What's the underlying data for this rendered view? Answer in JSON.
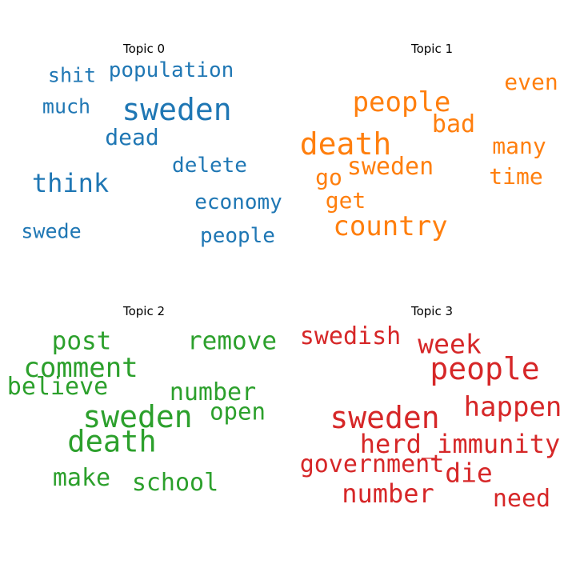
{
  "chart_data": [
    {
      "type": "wordcloud",
      "title": "Topic 0",
      "color": "#1f77b4",
      "words": [
        {
          "text": "sweden",
          "weight": 1.0
        },
        {
          "text": "think",
          "weight": 0.78
        },
        {
          "text": "dead",
          "weight": 0.6
        },
        {
          "text": "population",
          "weight": 0.55
        },
        {
          "text": "delete",
          "weight": 0.52
        },
        {
          "text": "economy",
          "weight": 0.52
        },
        {
          "text": "people",
          "weight": 0.52
        },
        {
          "text": "shit",
          "weight": 0.5
        },
        {
          "text": "much",
          "weight": 0.5
        },
        {
          "text": "swede",
          "weight": 0.5
        }
      ]
    },
    {
      "type": "wordcloud",
      "title": "Topic 1",
      "color": "#ff7f0e",
      "words": [
        {
          "text": "death",
          "weight": 1.0
        },
        {
          "text": "people",
          "weight": 0.85
        },
        {
          "text": "country",
          "weight": 0.85
        },
        {
          "text": "bad",
          "weight": 0.68
        },
        {
          "text": "sweden",
          "weight": 0.68
        },
        {
          "text": "many",
          "weight": 0.6
        },
        {
          "text": "time",
          "weight": 0.6
        },
        {
          "text": "even",
          "weight": 0.6
        },
        {
          "text": "go",
          "weight": 0.6
        },
        {
          "text": "get",
          "weight": 0.6
        }
      ]
    },
    {
      "type": "wordcloud",
      "title": "Topic 2",
      "color": "#2ca02c",
      "words": [
        {
          "text": "sweden",
          "weight": 1.0
        },
        {
          "text": "death",
          "weight": 0.98
        },
        {
          "text": "comment",
          "weight": 0.85
        },
        {
          "text": "remove",
          "weight": 0.74
        },
        {
          "text": "post",
          "weight": 0.72
        },
        {
          "text": "number",
          "weight": 0.7
        },
        {
          "text": "school",
          "weight": 0.7
        },
        {
          "text": "believe",
          "weight": 0.68
        },
        {
          "text": "make",
          "weight": 0.68
        },
        {
          "text": "open",
          "weight": 0.66
        }
      ]
    },
    {
      "type": "wordcloud",
      "title": "Topic 3",
      "color": "#d62728",
      "words": [
        {
          "text": "sweden",
          "weight": 1.0
        },
        {
          "text": "people",
          "weight": 1.0
        },
        {
          "text": "happen",
          "weight": 0.84
        },
        {
          "text": "week",
          "weight": 0.8
        },
        {
          "text": "herd_immunity",
          "weight": 0.76
        },
        {
          "text": "die",
          "weight": 0.8
        },
        {
          "text": "number",
          "weight": 0.76
        },
        {
          "text": "swedish",
          "weight": 0.7
        },
        {
          "text": "government",
          "weight": 0.7
        },
        {
          "text": "need",
          "weight": 0.7
        }
      ]
    }
  ]
}
